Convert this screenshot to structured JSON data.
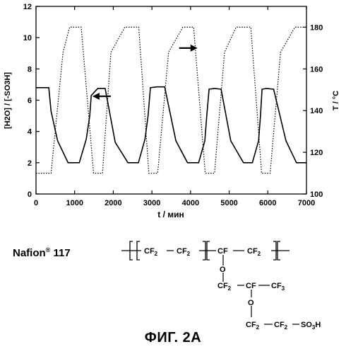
{
  "chart_data": {
    "type": "line",
    "xlabel": "t / мин",
    "ylabel_left": "[H2O] / [-SO3H]",
    "ylabel_right": "T / °C",
    "xlim": [
      0,
      7000
    ],
    "ylim_left": [
      0,
      12
    ],
    "ylim_right": [
      100,
      190
    ],
    "x_ticks": [
      0,
      1000,
      2000,
      3000,
      4000,
      5000,
      6000,
      7000
    ],
    "y_ticks_left": [
      0,
      2,
      4,
      6,
      8,
      10,
      12
    ],
    "y_ticks_right": [
      100,
      120,
      140,
      160,
      180
    ],
    "grid": false,
    "series": [
      {
        "axis": "left",
        "style": "solid",
        "x": [
          0,
          330,
          390,
          560,
          830,
          1120,
          1300,
          1390,
          1430,
          1600,
          1790,
          2050,
          2380,
          2650,
          2820,
          2900,
          2960,
          3130,
          3330,
          3620,
          3920,
          4210,
          4370,
          4420,
          4480,
          4620,
          4790,
          5040,
          5370,
          5600,
          5760,
          5810,
          5850,
          5970,
          6150,
          6470,
          6740,
          7000
        ],
        "y": [
          6.8,
          6.8,
          5.3,
          3.4,
          2.0,
          2.0,
          3.5,
          5.0,
          6.3,
          6.75,
          6.75,
          3.3,
          2.0,
          2.0,
          3.5,
          5.0,
          6.8,
          6.85,
          6.85,
          3.4,
          2.0,
          2.0,
          3.4,
          5.0,
          6.7,
          6.75,
          6.7,
          3.4,
          2.0,
          2.0,
          3.4,
          5.0,
          6.7,
          6.75,
          6.7,
          3.4,
          2.0,
          2.0
        ]
      },
      {
        "axis": "right",
        "style": "dotted",
        "x": [
          0,
          390,
          700,
          870,
          1170,
          1490,
          1720,
          1940,
          2300,
          2660,
          2920,
          3150,
          3430,
          3800,
          4080,
          4380,
          4620,
          4880,
          5180,
          5560,
          5840,
          6060,
          6330,
          6700,
          7000
        ],
        "y": [
          110,
          110,
          168,
          180,
          180,
          110,
          110,
          168,
          180,
          180,
          110,
          110,
          168,
          180,
          180,
          110,
          110,
          168,
          180,
          180,
          110,
          110,
          168,
          180,
          180
        ]
      }
    ],
    "annotations": [
      {
        "type": "arrow",
        "direction": "left",
        "refers_to_axis": "left",
        "at": [
          1460,
          6.25
        ]
      },
      {
        "type": "arrow",
        "direction": "right",
        "refers_to_axis": "right",
        "at": [
          4180,
          170
        ]
      }
    ]
  },
  "structure": {
    "name": "Nafion",
    "registered": "®",
    "number": "117",
    "backbone": [
      "CF",
      "2",
      "CF",
      "2",
      "CF",
      "CF",
      "2"
    ],
    "side_chain": [
      "O",
      "CF",
      "2",
      "CF",
      "CF",
      "3",
      "O",
      "CF",
      "2",
      "CF",
      "2",
      "SO",
      "3",
      "H"
    ]
  },
  "caption": "ФИГ. 2А"
}
